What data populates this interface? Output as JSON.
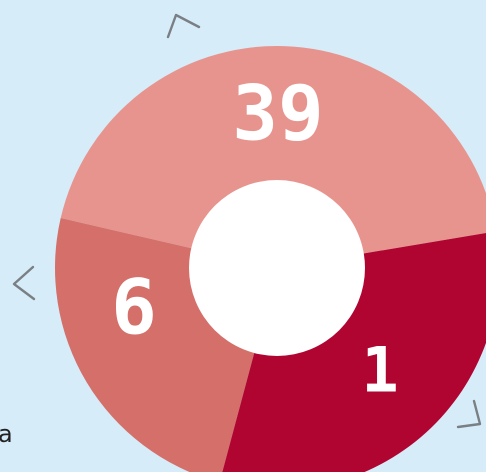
{
  "dial": {
    "sectors": [
      {
        "id": "top",
        "value": "39",
        "color": "#e8948e",
        "text_color": "#ffffff"
      },
      {
        "id": "left",
        "value": "6",
        "color": "#d46f6a",
        "text_color": "#ffffff"
      },
      {
        "id": "bottom-right",
        "value": "1",
        "color": "#b00531",
        "text_color": "#ffffff"
      }
    ],
    "hub_color": "#ffffff"
  },
  "side_letter": "a",
  "colors": {
    "background": "#d6ecf9",
    "arrow": "#7a7f84"
  },
  "icons": [
    "rotate-top-arrow-icon",
    "rotate-left-arrow-icon",
    "rotate-bottom-right-arrow-icon"
  ]
}
